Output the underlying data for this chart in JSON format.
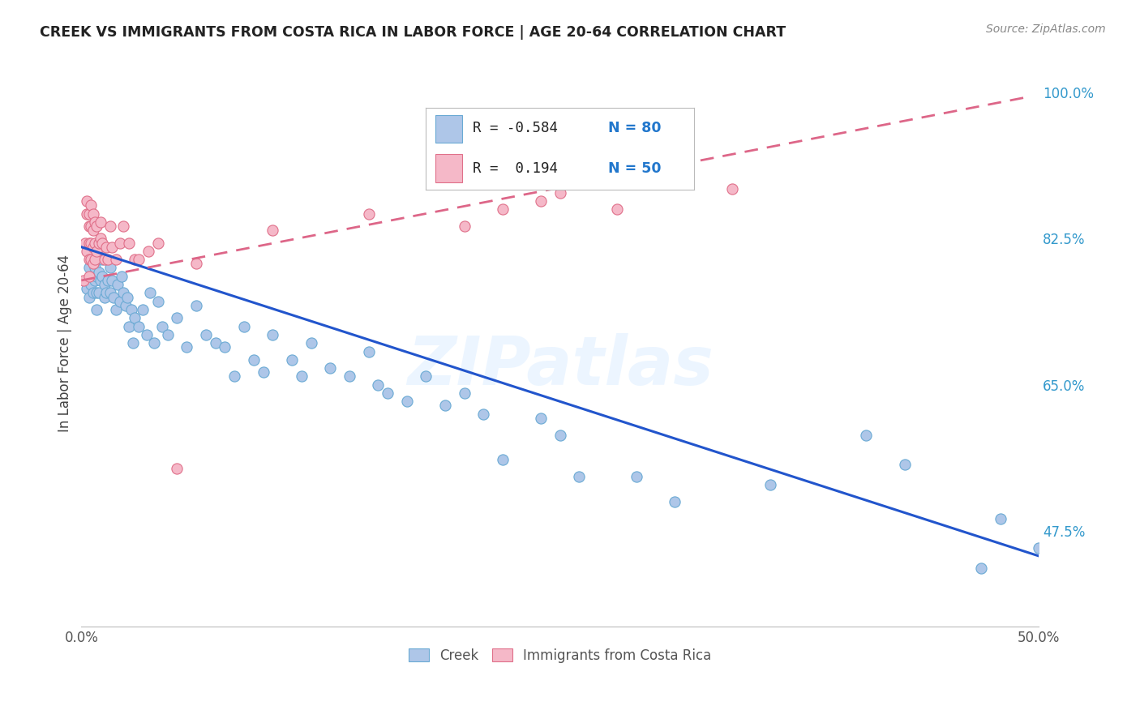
{
  "title": "CREEK VS IMMIGRANTS FROM COSTA RICA IN LABOR FORCE | AGE 20-64 CORRELATION CHART",
  "source": "Source: ZipAtlas.com",
  "ylabel": "In Labor Force | Age 20-64",
  "xlim": [
    0.0,
    0.5
  ],
  "ylim": [
    0.36,
    1.04
  ],
  "xtick_positions": [
    0.0,
    0.1,
    0.2,
    0.3,
    0.4,
    0.5
  ],
  "xticklabels": [
    "0.0%",
    "",
    "",
    "",
    "",
    "50.0%"
  ],
  "yticks_right": [
    0.475,
    0.65,
    0.825,
    1.0
  ],
  "yticklabels_right": [
    "47.5%",
    "65.0%",
    "82.5%",
    "100.0%"
  ],
  "background_color": "#ffffff",
  "grid_color": "#c8c8c8",
  "watermark": "ZIPatlas",
  "creek_color": "#aec6e8",
  "creek_edge_color": "#6aaad4",
  "immigrant_color": "#f5b8c8",
  "immigrant_edge_color": "#e0708a",
  "creek_line_color": "#2255cc",
  "immigrant_line_color": "#dd6688",
  "creek_trendline_x": [
    0.0,
    0.5
  ],
  "creek_trendline_y": [
    0.815,
    0.445
  ],
  "immigrant_trendline_x": [
    0.0,
    0.495
  ],
  "immigrant_trendline_y": [
    0.775,
    0.995
  ],
  "creek_scatter": [
    [
      0.003,
      0.765
    ],
    [
      0.004,
      0.755
    ],
    [
      0.004,
      0.79
    ],
    [
      0.005,
      0.77
    ],
    [
      0.005,
      0.81
    ],
    [
      0.005,
      0.78
    ],
    [
      0.006,
      0.8
    ],
    [
      0.006,
      0.76
    ],
    [
      0.007,
      0.79
    ],
    [
      0.007,
      0.775
    ],
    [
      0.007,
      0.815
    ],
    [
      0.008,
      0.78
    ],
    [
      0.008,
      0.76
    ],
    [
      0.008,
      0.74
    ],
    [
      0.009,
      0.785
    ],
    [
      0.009,
      0.76
    ],
    [
      0.01,
      0.775
    ],
    [
      0.01,
      0.81
    ],
    [
      0.011,
      0.78
    ],
    [
      0.011,
      0.8
    ],
    [
      0.012,
      0.77
    ],
    [
      0.012,
      0.755
    ],
    [
      0.013,
      0.76
    ],
    [
      0.014,
      0.775
    ],
    [
      0.015,
      0.76
    ],
    [
      0.015,
      0.79
    ],
    [
      0.016,
      0.775
    ],
    [
      0.017,
      0.755
    ],
    [
      0.018,
      0.74
    ],
    [
      0.019,
      0.77
    ],
    [
      0.02,
      0.75
    ],
    [
      0.021,
      0.78
    ],
    [
      0.022,
      0.76
    ],
    [
      0.023,
      0.745
    ],
    [
      0.024,
      0.755
    ],
    [
      0.025,
      0.72
    ],
    [
      0.026,
      0.74
    ],
    [
      0.027,
      0.7
    ],
    [
      0.028,
      0.73
    ],
    [
      0.03,
      0.72
    ],
    [
      0.032,
      0.74
    ],
    [
      0.034,
      0.71
    ],
    [
      0.036,
      0.76
    ],
    [
      0.038,
      0.7
    ],
    [
      0.04,
      0.75
    ],
    [
      0.042,
      0.72
    ],
    [
      0.045,
      0.71
    ],
    [
      0.05,
      0.73
    ],
    [
      0.055,
      0.695
    ],
    [
      0.06,
      0.745
    ],
    [
      0.065,
      0.71
    ],
    [
      0.07,
      0.7
    ],
    [
      0.075,
      0.695
    ],
    [
      0.08,
      0.66
    ],
    [
      0.085,
      0.72
    ],
    [
      0.09,
      0.68
    ],
    [
      0.095,
      0.665
    ],
    [
      0.1,
      0.71
    ],
    [
      0.11,
      0.68
    ],
    [
      0.115,
      0.66
    ],
    [
      0.12,
      0.7
    ],
    [
      0.13,
      0.67
    ],
    [
      0.14,
      0.66
    ],
    [
      0.15,
      0.69
    ],
    [
      0.155,
      0.65
    ],
    [
      0.16,
      0.64
    ],
    [
      0.17,
      0.63
    ],
    [
      0.18,
      0.66
    ],
    [
      0.19,
      0.625
    ],
    [
      0.2,
      0.64
    ],
    [
      0.21,
      0.615
    ],
    [
      0.22,
      0.56
    ],
    [
      0.24,
      0.61
    ],
    [
      0.25,
      0.59
    ],
    [
      0.26,
      0.54
    ],
    [
      0.29,
      0.54
    ],
    [
      0.31,
      0.51
    ],
    [
      0.36,
      0.53
    ],
    [
      0.41,
      0.59
    ],
    [
      0.43,
      0.555
    ],
    [
      0.47,
      0.43
    ],
    [
      0.48,
      0.49
    ],
    [
      0.5,
      0.455
    ]
  ],
  "immigrant_scatter": [
    [
      0.001,
      0.775
    ],
    [
      0.002,
      0.82
    ],
    [
      0.003,
      0.855
    ],
    [
      0.003,
      0.81
    ],
    [
      0.003,
      0.87
    ],
    [
      0.004,
      0.855
    ],
    [
      0.004,
      0.84
    ],
    [
      0.004,
      0.82
    ],
    [
      0.004,
      0.8
    ],
    [
      0.004,
      0.78
    ],
    [
      0.005,
      0.865
    ],
    [
      0.005,
      0.84
    ],
    [
      0.005,
      0.82
    ],
    [
      0.005,
      0.8
    ],
    [
      0.006,
      0.855
    ],
    [
      0.006,
      0.835
    ],
    [
      0.006,
      0.815
    ],
    [
      0.006,
      0.795
    ],
    [
      0.007,
      0.845
    ],
    [
      0.007,
      0.82
    ],
    [
      0.007,
      0.8
    ],
    [
      0.008,
      0.84
    ],
    [
      0.008,
      0.81
    ],
    [
      0.009,
      0.82
    ],
    [
      0.01,
      0.845
    ],
    [
      0.01,
      0.825
    ],
    [
      0.011,
      0.82
    ],
    [
      0.012,
      0.8
    ],
    [
      0.013,
      0.815
    ],
    [
      0.014,
      0.8
    ],
    [
      0.015,
      0.84
    ],
    [
      0.016,
      0.815
    ],
    [
      0.018,
      0.8
    ],
    [
      0.02,
      0.82
    ],
    [
      0.022,
      0.84
    ],
    [
      0.025,
      0.82
    ],
    [
      0.028,
      0.8
    ],
    [
      0.03,
      0.8
    ],
    [
      0.035,
      0.81
    ],
    [
      0.04,
      0.82
    ],
    [
      0.05,
      0.55
    ],
    [
      0.06,
      0.795
    ],
    [
      0.1,
      0.835
    ],
    [
      0.15,
      0.855
    ],
    [
      0.2,
      0.84
    ],
    [
      0.22,
      0.86
    ],
    [
      0.24,
      0.87
    ],
    [
      0.25,
      0.88
    ],
    [
      0.28,
      0.86
    ],
    [
      0.34,
      0.885
    ]
  ]
}
